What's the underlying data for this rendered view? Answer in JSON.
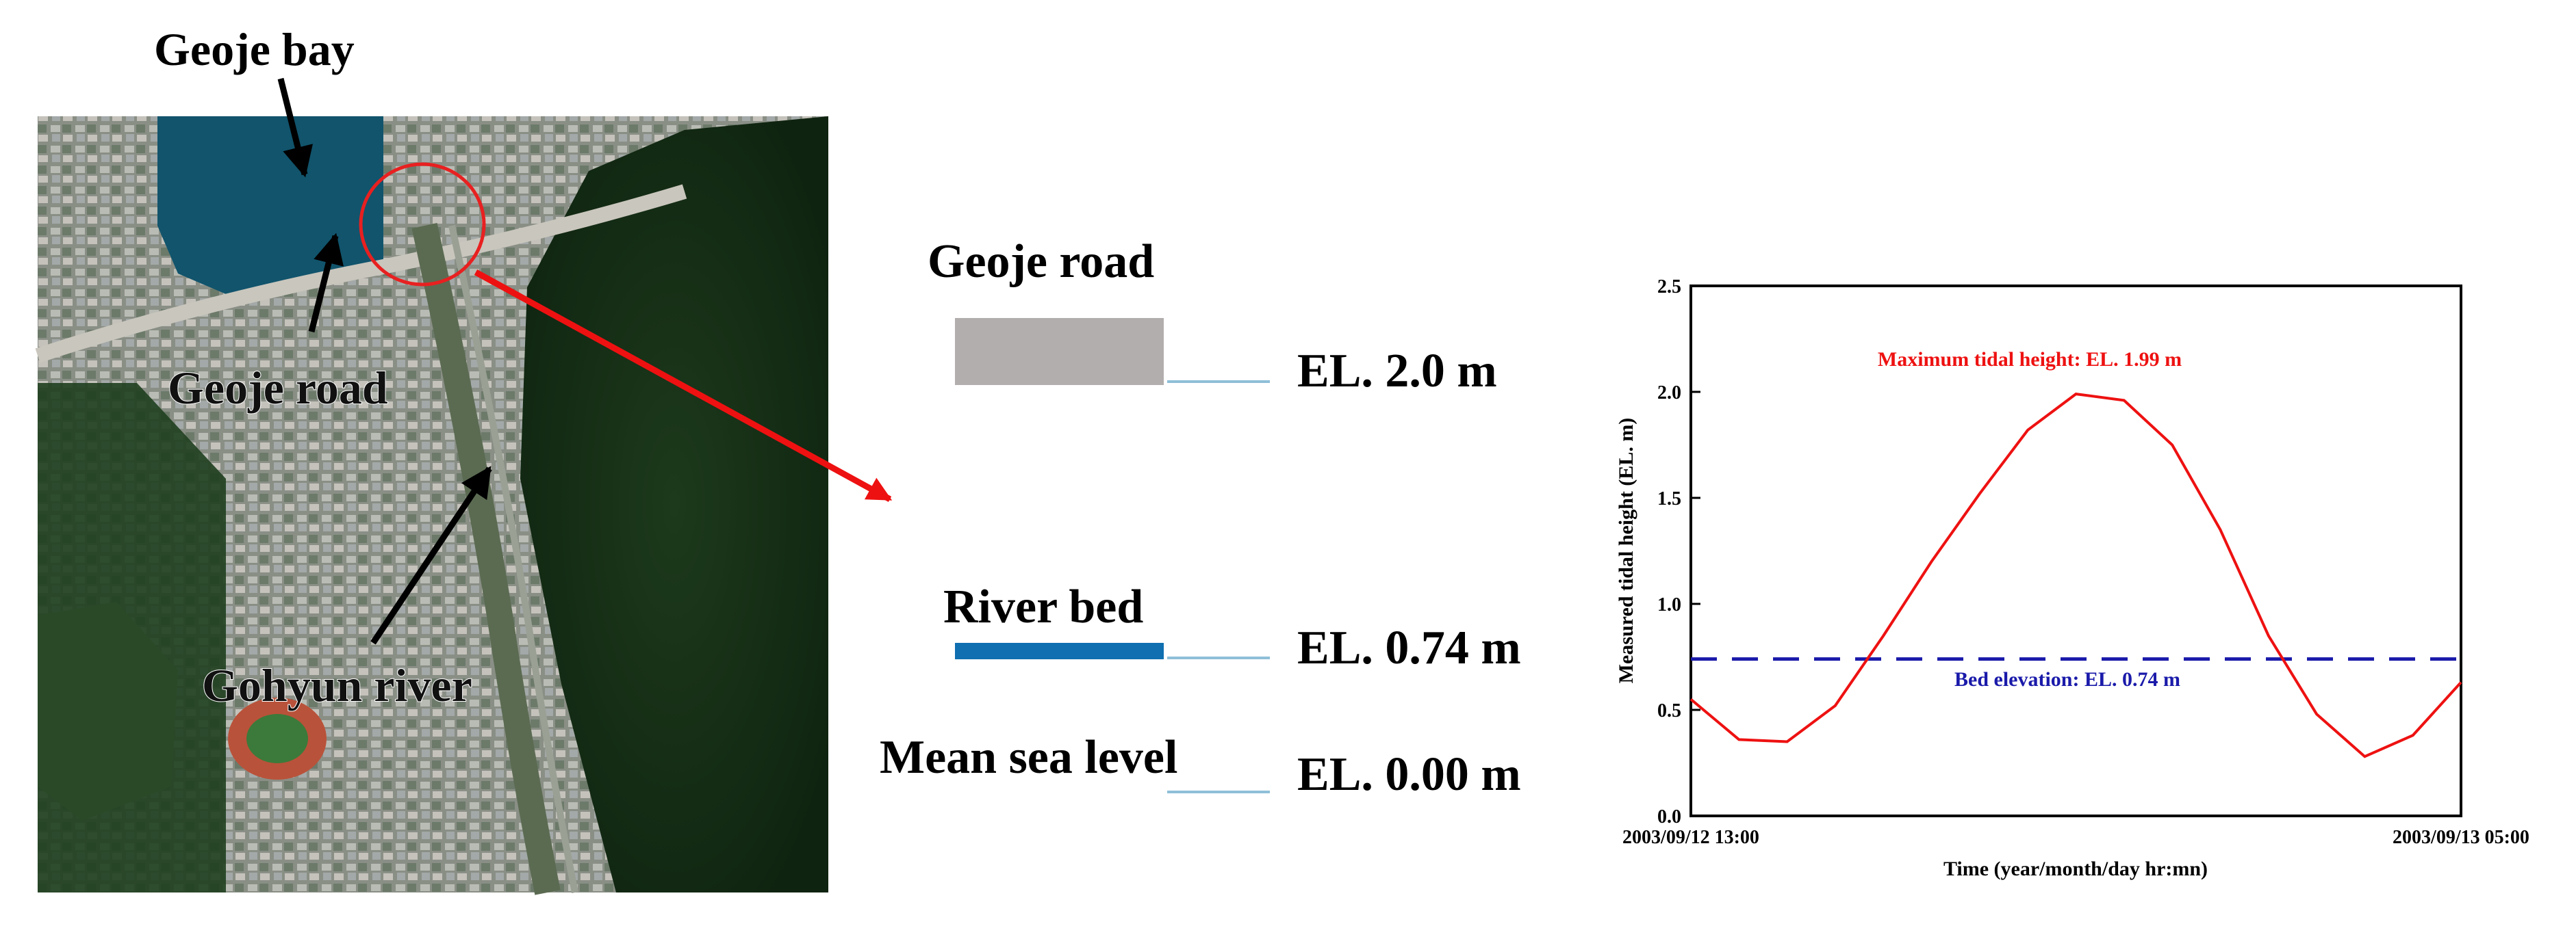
{
  "map": {
    "label_bay": "Geoje bay",
    "label_road": "Geoje road",
    "label_river": "Gohyun river"
  },
  "section": {
    "road_label": "Geoje road",
    "road_elevation": "EL. 2.0 m",
    "bed_label": "River bed",
    "bed_elevation": "EL. 0.74 m",
    "msl_label": "Mean sea level",
    "msl_elevation": "EL. 0.00 m",
    "colors": {
      "road": "#b3aeae",
      "bed": "#0f6fb0",
      "level_line": "#8fbfd8"
    }
  },
  "chart_data": {
    "type": "line",
    "ylabel": "Measured tidal height (EL. m)",
    "xlabel": "Time (year/month/day hr:mn)",
    "x_tick_labels": [
      "2003/09/12 13:00",
      "2003/09/13 05:00"
    ],
    "x_range_hours": [
      0,
      16
    ],
    "ylim": [
      0,
      2.5
    ],
    "y_ticks": [
      "0.0",
      "0.5",
      "1.0",
      "1.5",
      "2.0",
      "2.5"
    ],
    "series": [
      {
        "color": "#ee1111",
        "x": [
          0,
          1,
          2,
          3,
          4,
          5,
          6,
          7,
          8,
          9,
          10,
          11,
          12,
          13,
          14,
          15,
          16
        ],
        "values": [
          0.55,
          0.36,
          0.35,
          0.52,
          0.85,
          1.2,
          1.52,
          1.82,
          1.99,
          1.96,
          1.75,
          1.35,
          0.85,
          0.48,
          0.28,
          0.38,
          0.63
        ]
      }
    ],
    "reference_line": {
      "value": 0.74,
      "color": "#1a1aaa",
      "style": "dashed"
    },
    "annotations": {
      "max": "Maximum tidal height: EL. 1.99 m",
      "bed": "Bed elevation: EL. 0.74 m"
    }
  }
}
